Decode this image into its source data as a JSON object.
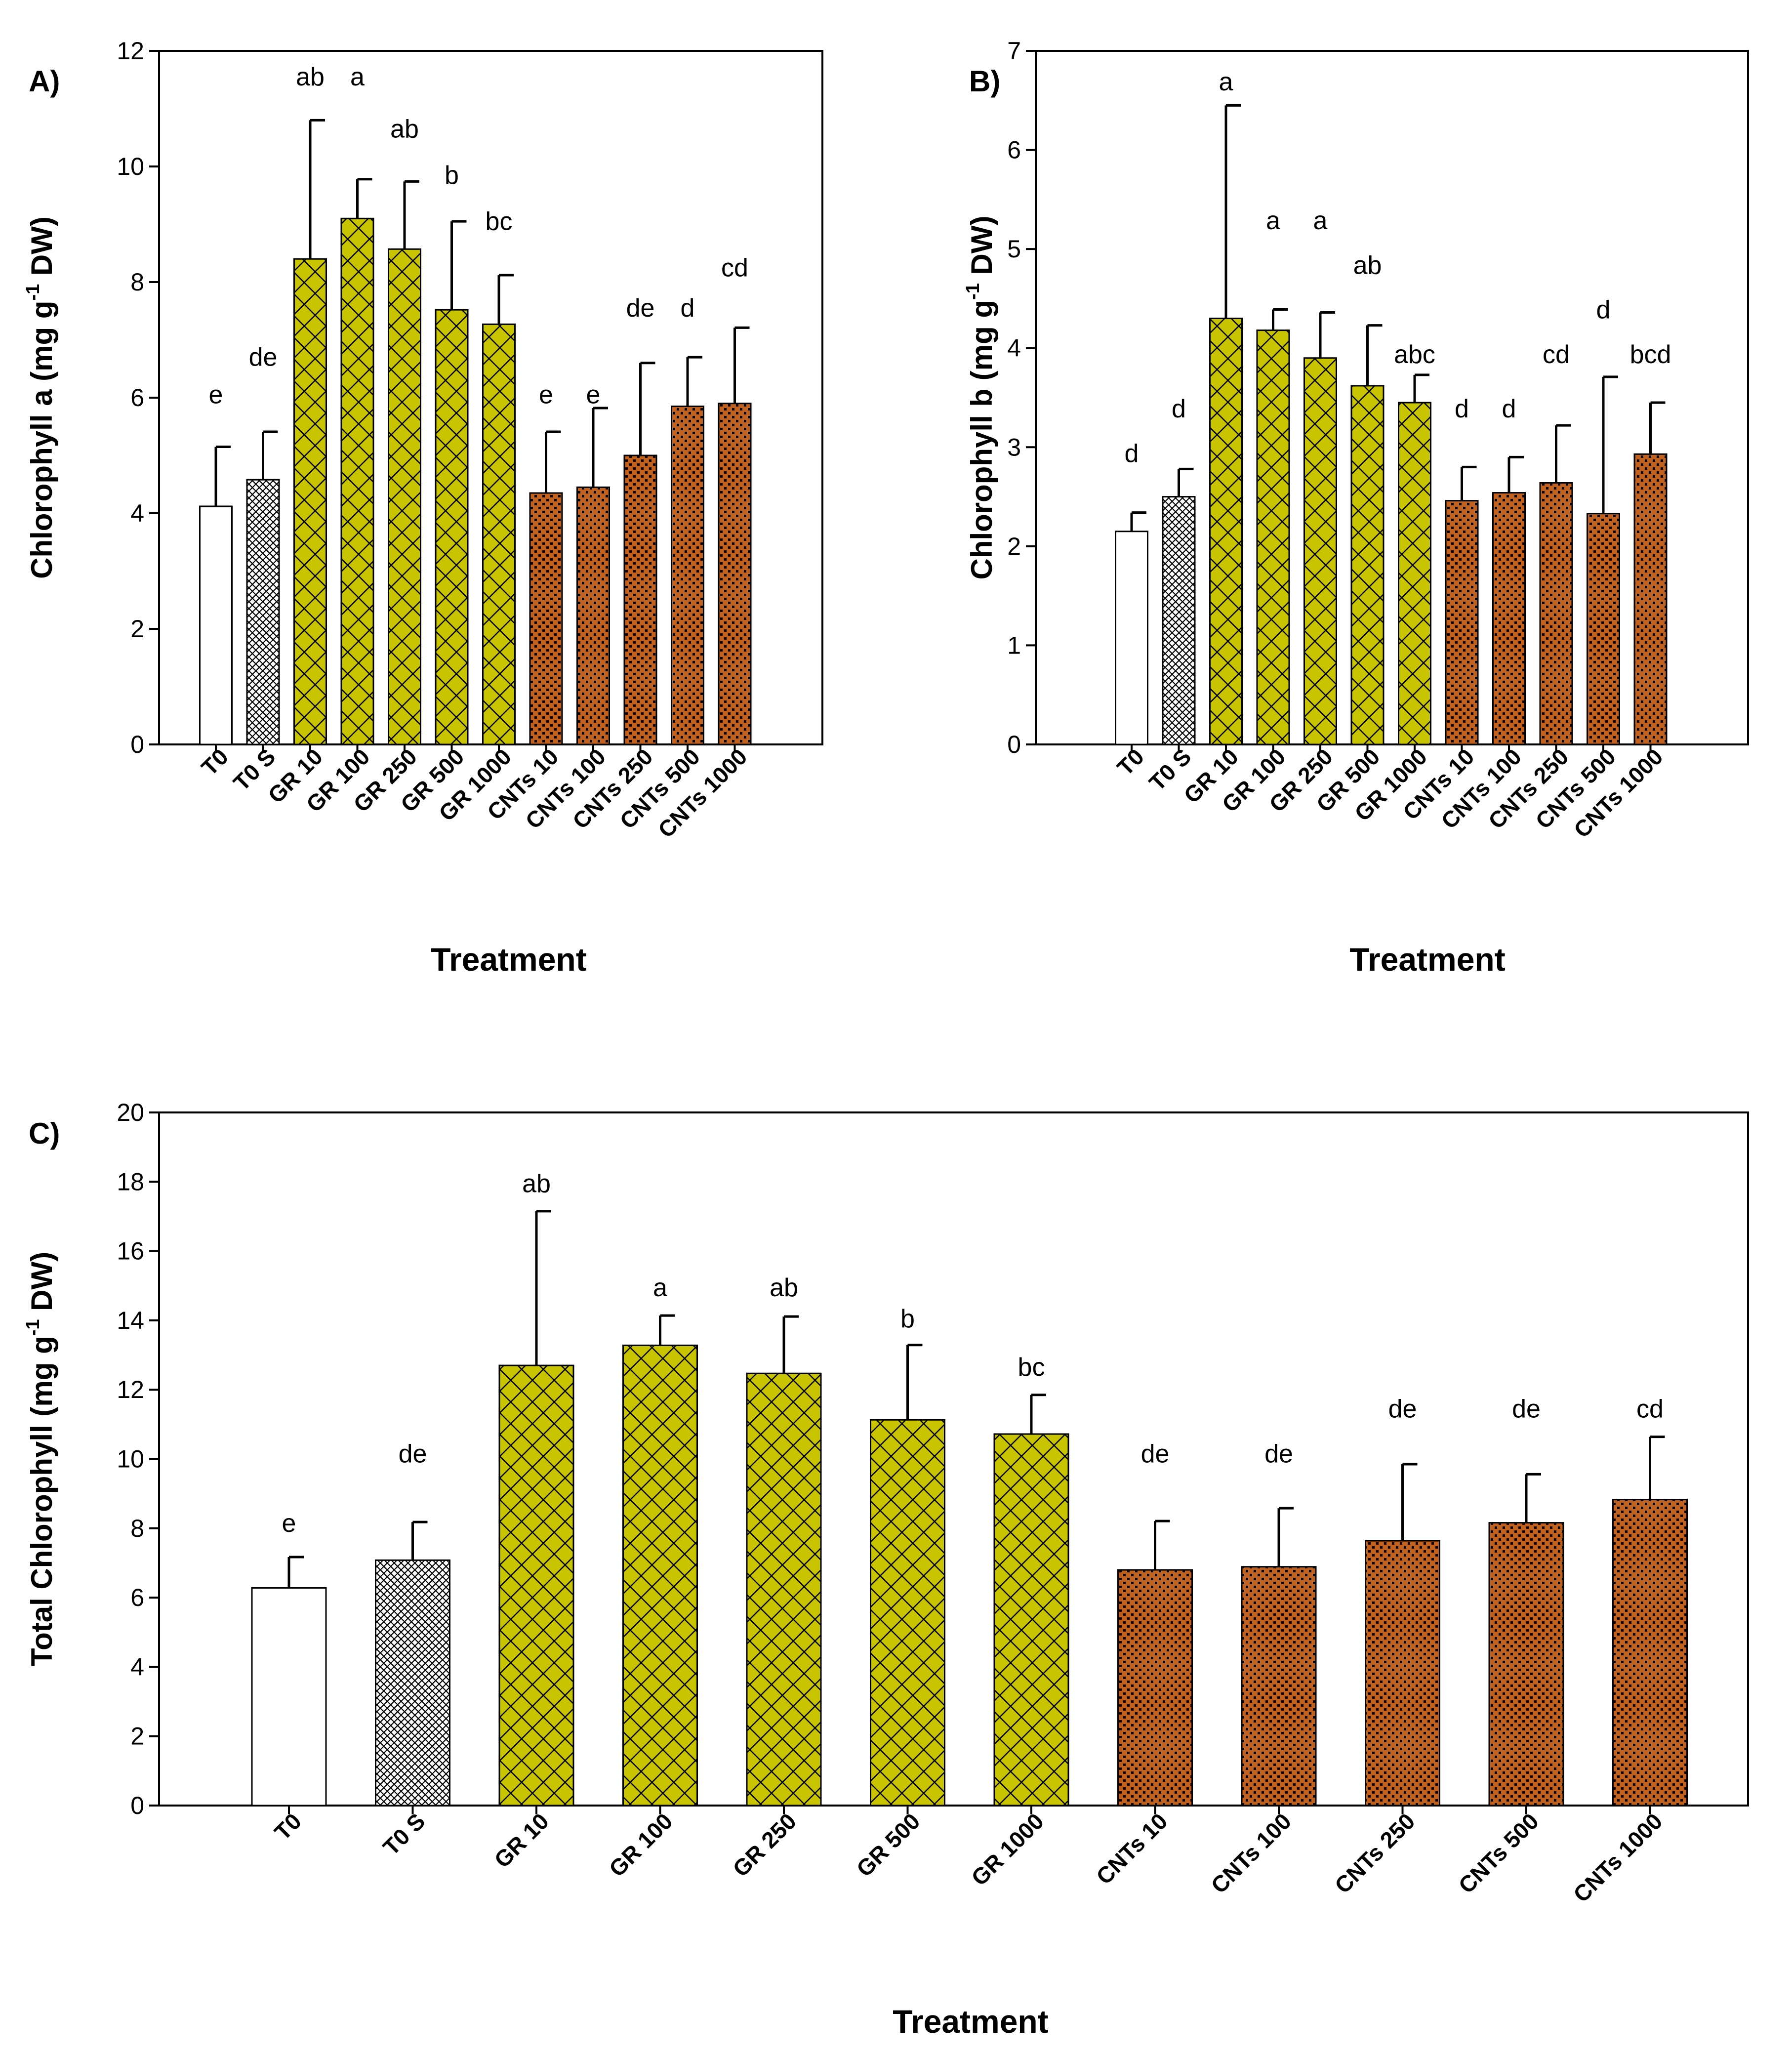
{
  "chart_data": [
    {
      "panel": "A)",
      "type": "bar",
      "ylabel": "Chlorophyll a (mg g^-1 DW)",
      "ylabel_parts": [
        "Chlorophyll a (mg g",
        "-1",
        " DW)"
      ],
      "xlabel": "Treatment",
      "ylim": [
        0,
        12
      ],
      "yticks": [
        0,
        2,
        4,
        6,
        8,
        10,
        12
      ],
      "categories": [
        "T0",
        "T0 S",
        "GR 10",
        "GR 100",
        "GR 250",
        "GR 500",
        "GR 1000",
        "CNTs 10",
        "CNTs 100",
        "CNTs 250",
        "CNTs 500",
        "CNTs 1000"
      ],
      "values": [
        4.12,
        4.58,
        8.4,
        9.1,
        8.57,
        7.52,
        7.27,
        4.35,
        4.45,
        5.0,
        5.85,
        5.9
      ],
      "errors": [
        1.03,
        0.83,
        2.4,
        0.68,
        1.17,
        1.53,
        0.85,
        1.06,
        1.37,
        1.6,
        0.85,
        1.31
      ],
      "letters": [
        "e",
        "de",
        "ab",
        "a",
        "ab",
        "b",
        "bc",
        "e",
        "e",
        "de",
        "d",
        "cd"
      ],
      "letter_y": [
        5.9,
        6.55,
        11.4,
        11.4,
        10.5,
        9.7,
        8.9,
        5.9,
        5.9,
        7.4,
        7.4,
        8.1
      ]
    },
    {
      "panel": "B)",
      "type": "bar",
      "ylabel": "Chlorophyll b (mg g^-1 DW)",
      "ylabel_parts": [
        "Chlorophyll b (mg g",
        "-1",
        " DW)"
      ],
      "xlabel": "Treatment",
      "ylim": [
        0,
        7
      ],
      "yticks": [
        0,
        1,
        2,
        3,
        4,
        5,
        6,
        7
      ],
      "categories": [
        "T0",
        "T0 S",
        "GR 10",
        "GR 100",
        "GR 250",
        "GR 500",
        "GR 1000",
        "CNTs 10",
        "CNTs 100",
        "CNTs 250",
        "CNTs 500",
        "CNTs 1000"
      ],
      "values": [
        2.15,
        2.5,
        4.3,
        4.18,
        3.9,
        3.62,
        3.45,
        2.46,
        2.54,
        2.64,
        2.33,
        2.93
      ],
      "errors": [
        0.19,
        0.28,
        2.15,
        0.21,
        0.46,
        0.61,
        0.28,
        0.34,
        0.36,
        0.58,
        1.38,
        0.52
      ],
      "letters": [
        "d",
        "d",
        "a",
        "a",
        "a",
        "ab",
        "abc",
        "d",
        "d",
        "cd",
        "d",
        "bcd"
      ],
      "letter_y": [
        2.85,
        3.3,
        6.6,
        5.2,
        5.2,
        4.75,
        3.85,
        3.3,
        3.3,
        3.85,
        4.3,
        3.85
      ]
    },
    {
      "panel": "C)",
      "type": "bar",
      "ylabel": "Total Chlorophyll (mg g^-1 DW)",
      "ylabel_parts": [
        "Total Chlorophyll (mg g",
        "-1",
        " DW)"
      ],
      "xlabel": "Treatment",
      "ylim": [
        0,
        20
      ],
      "yticks": [
        0,
        2,
        4,
        6,
        8,
        10,
        12,
        14,
        16,
        18,
        20
      ],
      "categories": [
        "T0",
        "T0 S",
        "GR 10",
        "GR 100",
        "GR 250",
        "GR 500",
        "GR 1000",
        "CNTs 10",
        "CNTs 100",
        "CNTs 250",
        "CNTs 500",
        "CNTs 1000"
      ],
      "values": [
        6.28,
        7.08,
        12.7,
        13.28,
        12.47,
        11.13,
        10.72,
        6.8,
        6.89,
        7.64,
        8.16,
        8.83
      ],
      "errors": [
        0.89,
        1.1,
        4.45,
        0.86,
        1.64,
        2.16,
        1.13,
        1.41,
        1.69,
        2.21,
        1.4,
        1.81
      ],
      "letters": [
        "e",
        "de",
        "ab",
        "a",
        "ab",
        "b",
        "bc",
        "de",
        "de",
        "de",
        "de",
        "cd"
      ],
      "letter_y": [
        7.9,
        9.9,
        17.7,
        14.7,
        14.7,
        13.8,
        12.4,
        9.9,
        9.9,
        11.2,
        11.2,
        11.2
      ]
    }
  ]
}
